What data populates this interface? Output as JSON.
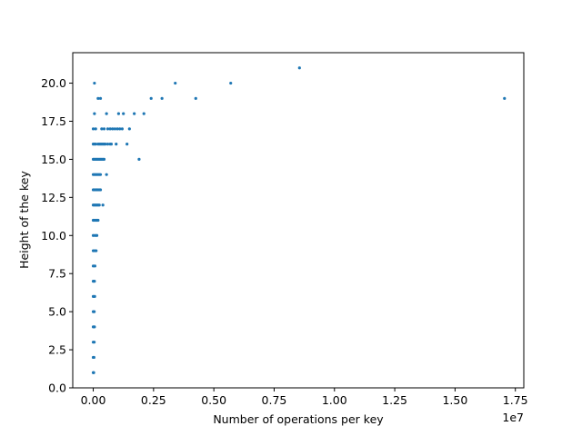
{
  "chart_data": {
    "type": "scatter",
    "xlabel": "Number of operations per key",
    "ylabel": "Height of the key",
    "x_offset_label": "1e7",
    "color": "#1f77b4",
    "x": [
      0,
      20000,
      0,
      30000,
      0,
      40000,
      0,
      50000,
      0,
      40000,
      0,
      60000,
      0,
      50000,
      0,
      70000,
      0,
      60000,
      120000,
      0,
      80000,
      150000,
      0,
      50000,
      100000,
      150000,
      200000,
      0,
      50000,
      100000,
      150000,
      200000,
      250000,
      400000,
      0,
      50000,
      100000,
      150000,
      200000,
      250000,
      300000,
      0,
      50000,
      100000,
      150000,
      200000,
      250000,
      300000,
      550000,
      0,
      50000,
      100000,
      150000,
      200000,
      250000,
      300000,
      350000,
      400000,
      450000,
      1900000,
      0,
      50000,
      100000,
      200000,
      250000,
      300000,
      350000,
      400000,
      450000,
      500000,
      600000,
      700000,
      750000,
      950000,
      1400000,
      0,
      100000,
      350000,
      450000,
      600000,
      700000,
      800000,
      900000,
      1000000,
      1100000,
      1200000,
      1500000,
      50000,
      550000,
      1050000,
      1250000,
      1700000,
      2100000,
      200000,
      300000,
      2400000,
      2850000,
      4250000,
      17050000,
      50000,
      3400000,
      5700000,
      8550000
    ],
    "y": [
      1,
      1,
      2,
      2,
      3,
      3,
      4,
      4,
      5,
      5,
      6,
      6,
      7,
      7,
      8,
      8,
      9,
      9,
      9,
      10,
      10,
      10,
      11,
      11,
      11,
      11,
      11,
      12,
      12,
      12,
      12,
      12,
      12,
      12,
      13,
      13,
      13,
      13,
      13,
      13,
      13,
      14,
      14,
      14,
      14,
      14,
      14,
      14,
      14,
      15,
      15,
      15,
      15,
      15,
      15,
      15,
      15,
      15,
      15,
      15,
      16,
      16,
      16,
      16,
      16,
      16,
      16,
      16,
      16,
      16,
      16,
      16,
      16,
      16,
      16,
      17,
      17,
      17,
      17,
      17,
      17,
      17,
      17,
      17,
      17,
      17,
      17,
      18,
      18,
      18,
      18,
      18,
      18,
      19,
      19,
      19,
      19,
      19,
      19,
      20,
      20,
      20,
      21
    ],
    "xlim": [
      -850000,
      17850000
    ],
    "ylim": [
      0,
      22
    ],
    "xticks": [
      {
        "value": 0,
        "label": "0.00"
      },
      {
        "value": 2500000,
        "label": "0.25"
      },
      {
        "value": 5000000,
        "label": "0.50"
      },
      {
        "value": 7500000,
        "label": "0.75"
      },
      {
        "value": 10000000,
        "label": "1.00"
      },
      {
        "value": 12500000,
        "label": "1.25"
      },
      {
        "value": 15000000,
        "label": "1.50"
      },
      {
        "value": 17500000,
        "label": "1.75"
      }
    ],
    "yticks": [
      {
        "value": 0,
        "label": "0.0"
      },
      {
        "value": 2.5,
        "label": "2.5"
      },
      {
        "value": 5,
        "label": "5.0"
      },
      {
        "value": 7.5,
        "label": "7.5"
      },
      {
        "value": 10,
        "label": "10.0"
      },
      {
        "value": 12.5,
        "label": "12.5"
      },
      {
        "value": 15,
        "label": "15.0"
      },
      {
        "value": 17.5,
        "label": "17.5"
      },
      {
        "value": 20,
        "label": "20.0"
      }
    ]
  }
}
